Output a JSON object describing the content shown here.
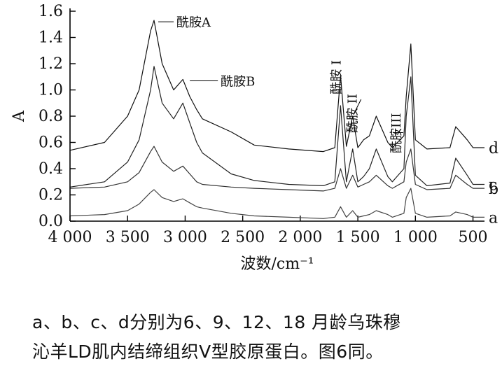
{
  "chart_data": {
    "type": "line",
    "title": "",
    "xlabel": "波数/cm⁻¹",
    "ylabel": "A",
    "xlim": [
      4000,
      400
    ],
    "ylim": [
      0.0,
      1.6
    ],
    "x_ticks": [
      4000,
      3500,
      3000,
      2500,
      2000,
      1500,
      1000,
      500
    ],
    "x_tick_labels": [
      "4 000",
      "3 500",
      "3 000",
      "2 500",
      "2 000",
      "1 500",
      "1 000",
      "500"
    ],
    "y_ticks": [
      0.0,
      0.2,
      0.4,
      0.6,
      0.8,
      1.0,
      1.2,
      1.4,
      1.6
    ],
    "y_tick_labels": [
      "0.0",
      "0.2",
      "0.4",
      "0.6",
      "0.8",
      "1.0",
      "1.2",
      "1.4",
      "1.6"
    ],
    "series": [
      {
        "name": "a",
        "x": [
          4000,
          3700,
          3500,
          3400,
          3300,
          3270,
          3200,
          3100,
          3020,
          2960,
          2900,
          2850,
          2600,
          2400,
          2100,
          1800,
          1700,
          1650,
          1600,
          1545,
          1500,
          1450,
          1400,
          1340,
          1240,
          1200,
          1100,
          1080,
          1040,
          1000,
          900,
          700,
          650,
          550,
          500,
          400
        ],
        "y": [
          0.04,
          0.05,
          0.08,
          0.13,
          0.22,
          0.24,
          0.18,
          0.15,
          0.17,
          0.14,
          0.11,
          0.1,
          0.06,
          0.04,
          0.03,
          0.02,
          0.03,
          0.11,
          0.03,
          0.08,
          0.03,
          0.04,
          0.05,
          0.08,
          0.05,
          0.03,
          0.06,
          0.18,
          0.25,
          0.06,
          0.03,
          0.04,
          0.07,
          0.05,
          0.03,
          0.03
        ]
      },
      {
        "name": "b",
        "x": [
          4000,
          3700,
          3500,
          3400,
          3300,
          3270,
          3200,
          3100,
          3020,
          2960,
          2900,
          2850,
          2600,
          2400,
          2100,
          1800,
          1700,
          1650,
          1600,
          1545,
          1500,
          1450,
          1400,
          1340,
          1240,
          1200,
          1100,
          1080,
          1040,
          1000,
          900,
          700,
          650,
          550,
          500,
          400
        ],
        "y": [
          0.25,
          0.26,
          0.3,
          0.37,
          0.53,
          0.57,
          0.45,
          0.38,
          0.42,
          0.36,
          0.3,
          0.28,
          0.26,
          0.25,
          0.24,
          0.23,
          0.25,
          0.4,
          0.25,
          0.35,
          0.26,
          0.28,
          0.3,
          0.35,
          0.27,
          0.25,
          0.3,
          0.45,
          0.55,
          0.28,
          0.24,
          0.25,
          0.35,
          0.28,
          0.25,
          0.25
        ]
      },
      {
        "name": "c",
        "x": [
          4000,
          3700,
          3500,
          3400,
          3300,
          3270,
          3200,
          3100,
          3020,
          2960,
          2900,
          2850,
          2600,
          2400,
          2100,
          1800,
          1700,
          1650,
          1600,
          1545,
          1500,
          1450,
          1400,
          1340,
          1240,
          1200,
          1100,
          1080,
          1040,
          1000,
          900,
          700,
          650,
          550,
          500,
          400
        ],
        "y": [
          0.26,
          0.3,
          0.45,
          0.62,
          1.0,
          1.18,
          0.9,
          0.78,
          0.9,
          0.75,
          0.6,
          0.52,
          0.36,
          0.31,
          0.28,
          0.27,
          0.3,
          0.88,
          0.3,
          0.55,
          0.3,
          0.34,
          0.4,
          0.55,
          0.34,
          0.3,
          0.4,
          0.8,
          1.1,
          0.35,
          0.27,
          0.29,
          0.48,
          0.35,
          0.28,
          0.28
        ]
      },
      {
        "name": "d",
        "x": [
          4000,
          3700,
          3500,
          3400,
          3300,
          3270,
          3200,
          3100,
          3020,
          2960,
          2900,
          2850,
          2600,
          2400,
          2100,
          1800,
          1700,
          1650,
          1600,
          1545,
          1500,
          1450,
          1400,
          1340,
          1240,
          1200,
          1100,
          1080,
          1040,
          1000,
          900,
          700,
          650,
          550,
          500,
          400
        ],
        "y": [
          0.54,
          0.6,
          0.8,
          1.0,
          1.45,
          1.53,
          1.2,
          1.0,
          1.08,
          0.95,
          0.85,
          0.78,
          0.68,
          0.58,
          0.55,
          0.53,
          0.56,
          1.11,
          0.57,
          0.8,
          0.56,
          0.62,
          0.65,
          0.8,
          0.6,
          0.56,
          0.65,
          0.95,
          1.35,
          0.62,
          0.55,
          0.56,
          0.72,
          0.62,
          0.56,
          0.56
        ]
      }
    ],
    "annotations": [
      {
        "text": "酰胺A",
        "x": 3270,
        "y": 1.53
      },
      {
        "text": "酰胺B",
        "x": 3020,
        "y": 1.08
      },
      {
        "text": "酰胺 I",
        "x": 1650,
        "y": 1.11
      },
      {
        "text": "酰胺 II",
        "x": 1545,
        "y": 0.8
      },
      {
        "text": "酰胺III",
        "x": 1240,
        "y": 0.6
      }
    ]
  },
  "caption": {
    "line1": "a、b、c、d分别为6、9、12、18 月龄乌珠穆",
    "line2": "沁羊LD肌内结缔组织Ⅴ型胶原蛋白。图6同。"
  }
}
